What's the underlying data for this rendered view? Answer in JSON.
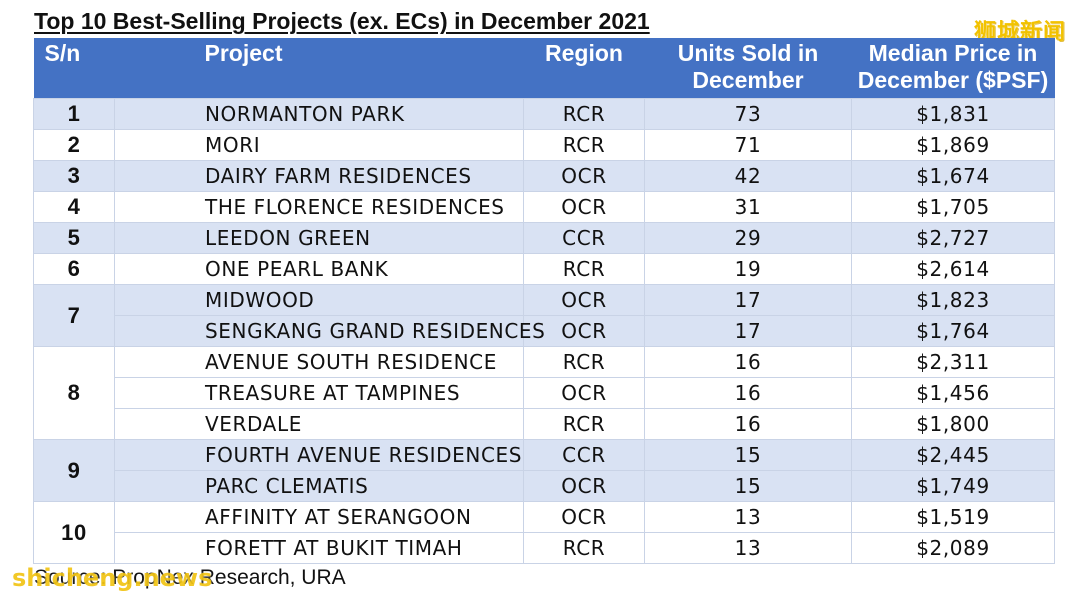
{
  "title": "Top 10 Best-Selling Projects (ex. ECs) in December 2021",
  "watermark_top": "狮城新闻",
  "watermark_bottom": "shicheng.news",
  "source": "Source: PropNex Research, URA",
  "colors": {
    "header_bg": "#4472c4",
    "band": "#d9e2f3",
    "watermark": "#f2c200"
  },
  "headers": {
    "sn": "S/n",
    "project": "Project",
    "region": "Region",
    "units": [
      "Units Sold in",
      "December"
    ],
    "price": [
      "Median Price in",
      "December ($PSF)"
    ]
  },
  "rows": [
    {
      "sn": "1",
      "project": "NORMANTON PARK",
      "region": "RCR",
      "units": "73",
      "price": "$1,831"
    },
    {
      "sn": "2",
      "project": "MORI",
      "region": "RCR",
      "units": "71",
      "price": "$1,869"
    },
    {
      "sn": "3",
      "project": "DAIRY FARM RESIDENCES",
      "region": "OCR",
      "units": "42",
      "price": "$1,674"
    },
    {
      "sn": "4",
      "project": "THE FLORENCE RESIDENCES",
      "region": "OCR",
      "units": "31",
      "price": "$1,705"
    },
    {
      "sn": "5",
      "project": "LEEDON GREEN",
      "region": "CCR",
      "units": "29",
      "price": "$2,727"
    },
    {
      "sn": "6",
      "project": "ONE PEARL BANK",
      "region": "RCR",
      "units": "19",
      "price": "$2,614"
    },
    {
      "sn": "7",
      "project": "MIDWOOD",
      "region": "OCR",
      "units": "17",
      "price": "$1,823"
    },
    {
      "sn": "",
      "project": "SENGKANG GRAND RESIDENCES",
      "region": "OCR",
      "units": "17",
      "price": "$1,764"
    },
    {
      "sn": "8",
      "project": "AVENUE SOUTH RESIDENCE",
      "region": "RCR",
      "units": "16",
      "price": "$2,311"
    },
    {
      "sn": "",
      "project": "TREASURE AT TAMPINES",
      "region": "OCR",
      "units": "16",
      "price": "$1,456"
    },
    {
      "sn": "",
      "project": "VERDALE",
      "region": "RCR",
      "units": "16",
      "price": "$1,800"
    },
    {
      "sn": "9",
      "project": "FOURTH AVENUE RESIDENCES",
      "region": "CCR",
      "units": "15",
      "price": "$2,445"
    },
    {
      "sn": "",
      "project": "PARC CLEMATIS",
      "region": "OCR",
      "units": "15",
      "price": "$1,749"
    },
    {
      "sn": "10",
      "project": "AFFINITY AT SERANGOON",
      "region": "OCR",
      "units": "13",
      "price": "$1,519"
    },
    {
      "sn": "",
      "project": "FORETT AT BUKIT TIMAH",
      "region": "RCR",
      "units": "13",
      "price": "$2,089"
    }
  ]
}
